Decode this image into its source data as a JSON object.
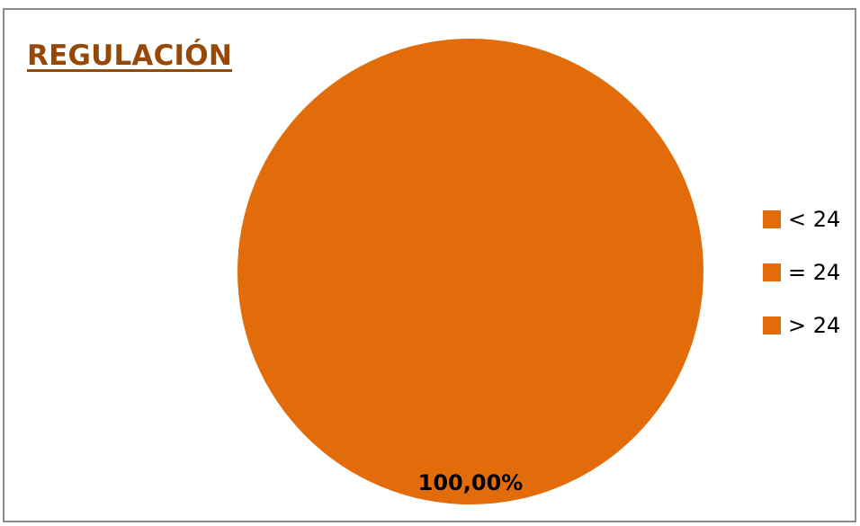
{
  "chart_data": {
    "type": "pie",
    "title": "REGULACIÓN",
    "slices": [
      {
        "label": "< 24",
        "value": 0,
        "color": "#e36c0a"
      },
      {
        "label": "= 24",
        "value": 0,
        "color": "#e36c0a"
      },
      {
        "label": "> 24",
        "value": 100.0,
        "color": "#e36c0a",
        "data_label": "100,00%"
      }
    ],
    "legend_position": "right",
    "title_color": "#984806"
  }
}
